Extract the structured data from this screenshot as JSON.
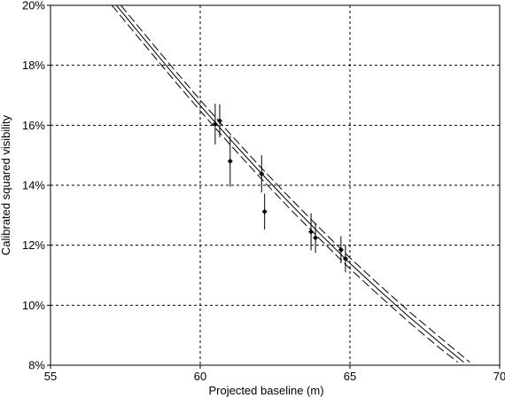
{
  "chart_data": {
    "type": "scatter",
    "title": "",
    "xlabel": "Projected baseline (m)",
    "ylabel": "Calibrated squared visibility",
    "xlim": [
      55,
      70
    ],
    "ylim": [
      0.08,
      0.2
    ],
    "xticks": [
      55,
      60,
      65,
      70
    ],
    "xtick_labels": [
      "55",
      "60",
      "65",
      "70"
    ],
    "yticks": [
      0.08,
      0.1,
      0.12,
      0.14,
      0.16,
      0.18,
      0.2
    ],
    "ytick_labels": [
      "8%",
      "10%",
      "12%",
      "14%",
      "16%",
      "18%",
      "20%"
    ],
    "grid": true,
    "legend": "none",
    "series": [
      {
        "kind": "points-with-errorbars",
        "color": "#000000",
        "marker": "diamond",
        "points": [
          {
            "x": 60.5,
            "y": 0.1604,
            "yerr": 0.0068
          },
          {
            "x": 60.65,
            "y": 0.1615,
            "yerr": 0.0055
          },
          {
            "x": 61.0,
            "y": 0.148,
            "yerr": 0.0085
          },
          {
            "x": 62.05,
            "y": 0.1438,
            "yerr": 0.0062
          },
          {
            "x": 62.15,
            "y": 0.1312,
            "yerr": 0.006
          },
          {
            "x": 63.7,
            "y": 0.1245,
            "yerr": 0.0062
          },
          {
            "x": 63.85,
            "y": 0.1225,
            "yerr": 0.005
          },
          {
            "x": 64.7,
            "y": 0.1185,
            "yerr": 0.0045
          },
          {
            "x": 64.85,
            "y": 0.1155,
            "yerr": 0.0045
          }
        ]
      },
      {
        "kind": "curve",
        "style": "solid",
        "color": "#000000",
        "x": [
          57.2,
          58,
          59,
          60,
          61,
          62,
          63,
          64,
          65,
          66,
          67,
          68,
          68.8
        ],
        "y": [
          0.2,
          0.1903,
          0.1783,
          0.1666,
          0.1553,
          0.1444,
          0.1339,
          0.1238,
          0.114,
          0.1048,
          0.0959,
          0.0875,
          0.081
        ]
      },
      {
        "kind": "curve",
        "style": "dashed",
        "color": "#000000",
        "x": [
          57.35,
          58,
          59,
          60,
          61,
          62,
          63,
          64,
          65,
          66,
          67,
          68,
          69.0
        ],
        "y": [
          0.2,
          0.1921,
          0.1801,
          0.1684,
          0.1571,
          0.1462,
          0.1357,
          0.1256,
          0.1158,
          0.1066,
          0.0977,
          0.0893,
          0.081
        ]
      },
      {
        "kind": "curve",
        "style": "dashed",
        "color": "#000000",
        "x": [
          57.05,
          58,
          59,
          60,
          61,
          62,
          63,
          64,
          65,
          66,
          67,
          68,
          68.6
        ],
        "y": [
          0.2,
          0.1885,
          0.1765,
          0.1648,
          0.1535,
          0.1426,
          0.1321,
          0.122,
          0.1122,
          0.103,
          0.0941,
          0.0857,
          0.081
        ]
      }
    ]
  }
}
